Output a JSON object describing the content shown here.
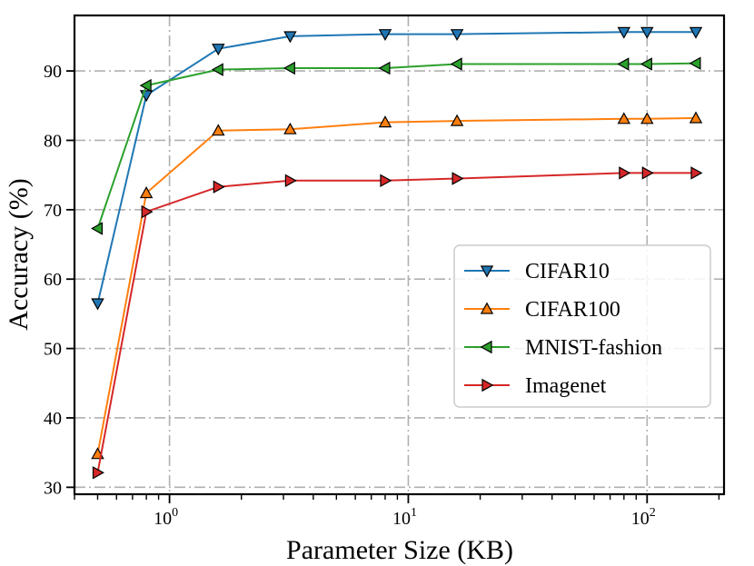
{
  "chart_data": {
    "type": "line",
    "xscale": "log",
    "xlabel": "Parameter Size (KB)",
    "ylabel": "Accuracy (%)",
    "xlim": [
      0.4,
      210
    ],
    "ylim": [
      29,
      98
    ],
    "grid": true,
    "legend_position": "center-right",
    "x_tick_labels": [
      {
        "value": 1,
        "base": "10",
        "exp": "0"
      },
      {
        "value": 10,
        "base": "10",
        "exp": "1"
      },
      {
        "value": 100,
        "base": "10",
        "exp": "2"
      }
    ],
    "y_ticks": [
      30,
      40,
      50,
      60,
      70,
      80,
      90
    ],
    "y_tick_labels": [
      "30",
      "40",
      "50",
      "60",
      "70",
      "80",
      "90"
    ],
    "x": [
      0.5,
      0.8,
      1.6,
      3.2,
      8,
      16,
      80,
      100,
      160
    ],
    "series": [
      {
        "name": "CIFAR10",
        "color": "#1f77b4",
        "marker": "triangle-down",
        "values": [
          56.5,
          86.5,
          93.2,
          95.0,
          95.3,
          95.3,
          95.6,
          95.6,
          95.6
        ]
      },
      {
        "name": "CIFAR100",
        "color": "#ff7f0e",
        "marker": "triangle-up",
        "values": [
          34.8,
          72.4,
          81.4,
          81.6,
          82.6,
          82.8,
          83.1,
          83.1,
          83.2
        ]
      },
      {
        "name": "MNIST-fashion",
        "color": "#2ca02c",
        "marker": "triangle-left",
        "values": [
          67.3,
          87.9,
          90.2,
          90.4,
          90.4,
          91.0,
          91.0,
          91.0,
          91.1
        ]
      },
      {
        "name": "Imagenet",
        "color": "#d62728",
        "marker": "triangle-right",
        "values": [
          32.1,
          69.7,
          73.3,
          74.2,
          74.2,
          74.5,
          75.3,
          75.3,
          75.3
        ]
      }
    ]
  }
}
